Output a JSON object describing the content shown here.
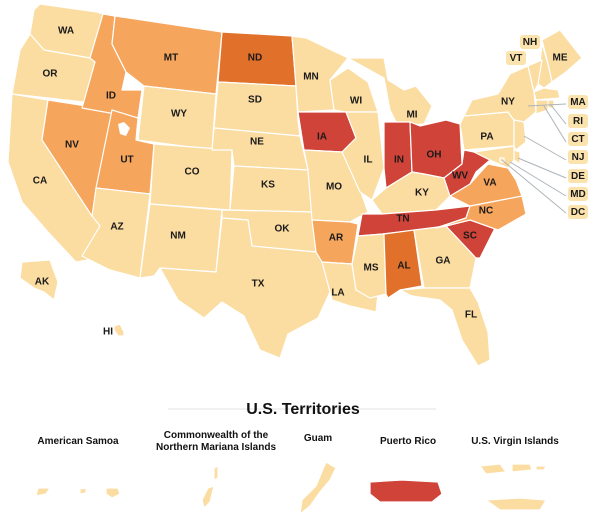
{
  "colors": {
    "lowest": "#fbdca1",
    "low": "#f6a55c",
    "medium": "#e1712a",
    "high": "#cf4338"
  },
  "states": [
    {
      "code": "WA",
      "level": "lowest"
    },
    {
      "code": "OR",
      "level": "lowest"
    },
    {
      "code": "CA",
      "level": "lowest"
    },
    {
      "code": "NV",
      "level": "low"
    },
    {
      "code": "ID",
      "level": "low"
    },
    {
      "code": "MT",
      "level": "low"
    },
    {
      "code": "WY",
      "level": "lowest"
    },
    {
      "code": "UT",
      "level": "low"
    },
    {
      "code": "AZ",
      "level": "lowest"
    },
    {
      "code": "CO",
      "level": "lowest"
    },
    {
      "code": "NM",
      "level": "lowest"
    },
    {
      "code": "ND",
      "level": "medium"
    },
    {
      "code": "SD",
      "level": "lowest"
    },
    {
      "code": "NE",
      "level": "lowest"
    },
    {
      "code": "KS",
      "level": "lowest"
    },
    {
      "code": "OK",
      "level": "lowest"
    },
    {
      "code": "TX",
      "level": "lowest"
    },
    {
      "code": "MN",
      "level": "lowest"
    },
    {
      "code": "IA",
      "level": "high"
    },
    {
      "code": "MO",
      "level": "lowest"
    },
    {
      "code": "AR",
      "level": "low"
    },
    {
      "code": "LA",
      "level": "lowest"
    },
    {
      "code": "WI",
      "level": "lowest"
    },
    {
      "code": "IL",
      "level": "lowest"
    },
    {
      "code": "MI",
      "level": "lowest"
    },
    {
      "code": "IN",
      "level": "high"
    },
    {
      "code": "OH",
      "level": "high"
    },
    {
      "code": "KY",
      "level": "lowest"
    },
    {
      "code": "TN",
      "level": "high"
    },
    {
      "code": "MS",
      "level": "lowest"
    },
    {
      "code": "AL",
      "level": "medium"
    },
    {
      "code": "GA",
      "level": "lowest"
    },
    {
      "code": "FL",
      "level": "lowest"
    },
    {
      "code": "SC",
      "level": "high"
    },
    {
      "code": "NC",
      "level": "low"
    },
    {
      "code": "VA",
      "level": "low"
    },
    {
      "code": "WV",
      "level": "high"
    },
    {
      "code": "PA",
      "level": "lowest"
    },
    {
      "code": "NY",
      "level": "lowest"
    },
    {
      "code": "ME",
      "level": "lowest"
    },
    {
      "code": "NH",
      "level": "lowest"
    },
    {
      "code": "VT",
      "level": "lowest"
    },
    {
      "code": "MA",
      "level": "lowest"
    },
    {
      "code": "RI",
      "level": "lowest"
    },
    {
      "code": "CT",
      "level": "lowest"
    },
    {
      "code": "NJ",
      "level": "lowest"
    },
    {
      "code": "DE",
      "level": "lowest"
    },
    {
      "code": "MD",
      "level": "lowest"
    },
    {
      "code": "DC",
      "level": "lowest"
    },
    {
      "code": "AK",
      "level": "lowest"
    },
    {
      "code": "HI",
      "level": "lowest"
    }
  ],
  "territories_title": "U.S. Territories",
  "territories": [
    {
      "name": "American Samoa",
      "level": "lowest"
    },
    {
      "name": "Commonwealth of the Northern Mariana Islands",
      "line1": "Commonwealth of the",
      "line2": "Northern Mariana Islands",
      "level": "lowest"
    },
    {
      "name": "Guam",
      "level": "lowest"
    },
    {
      "name": "Puerto Rico",
      "level": "high"
    },
    {
      "name": "U.S. Virgin Islands",
      "level": "lowest"
    }
  ]
}
